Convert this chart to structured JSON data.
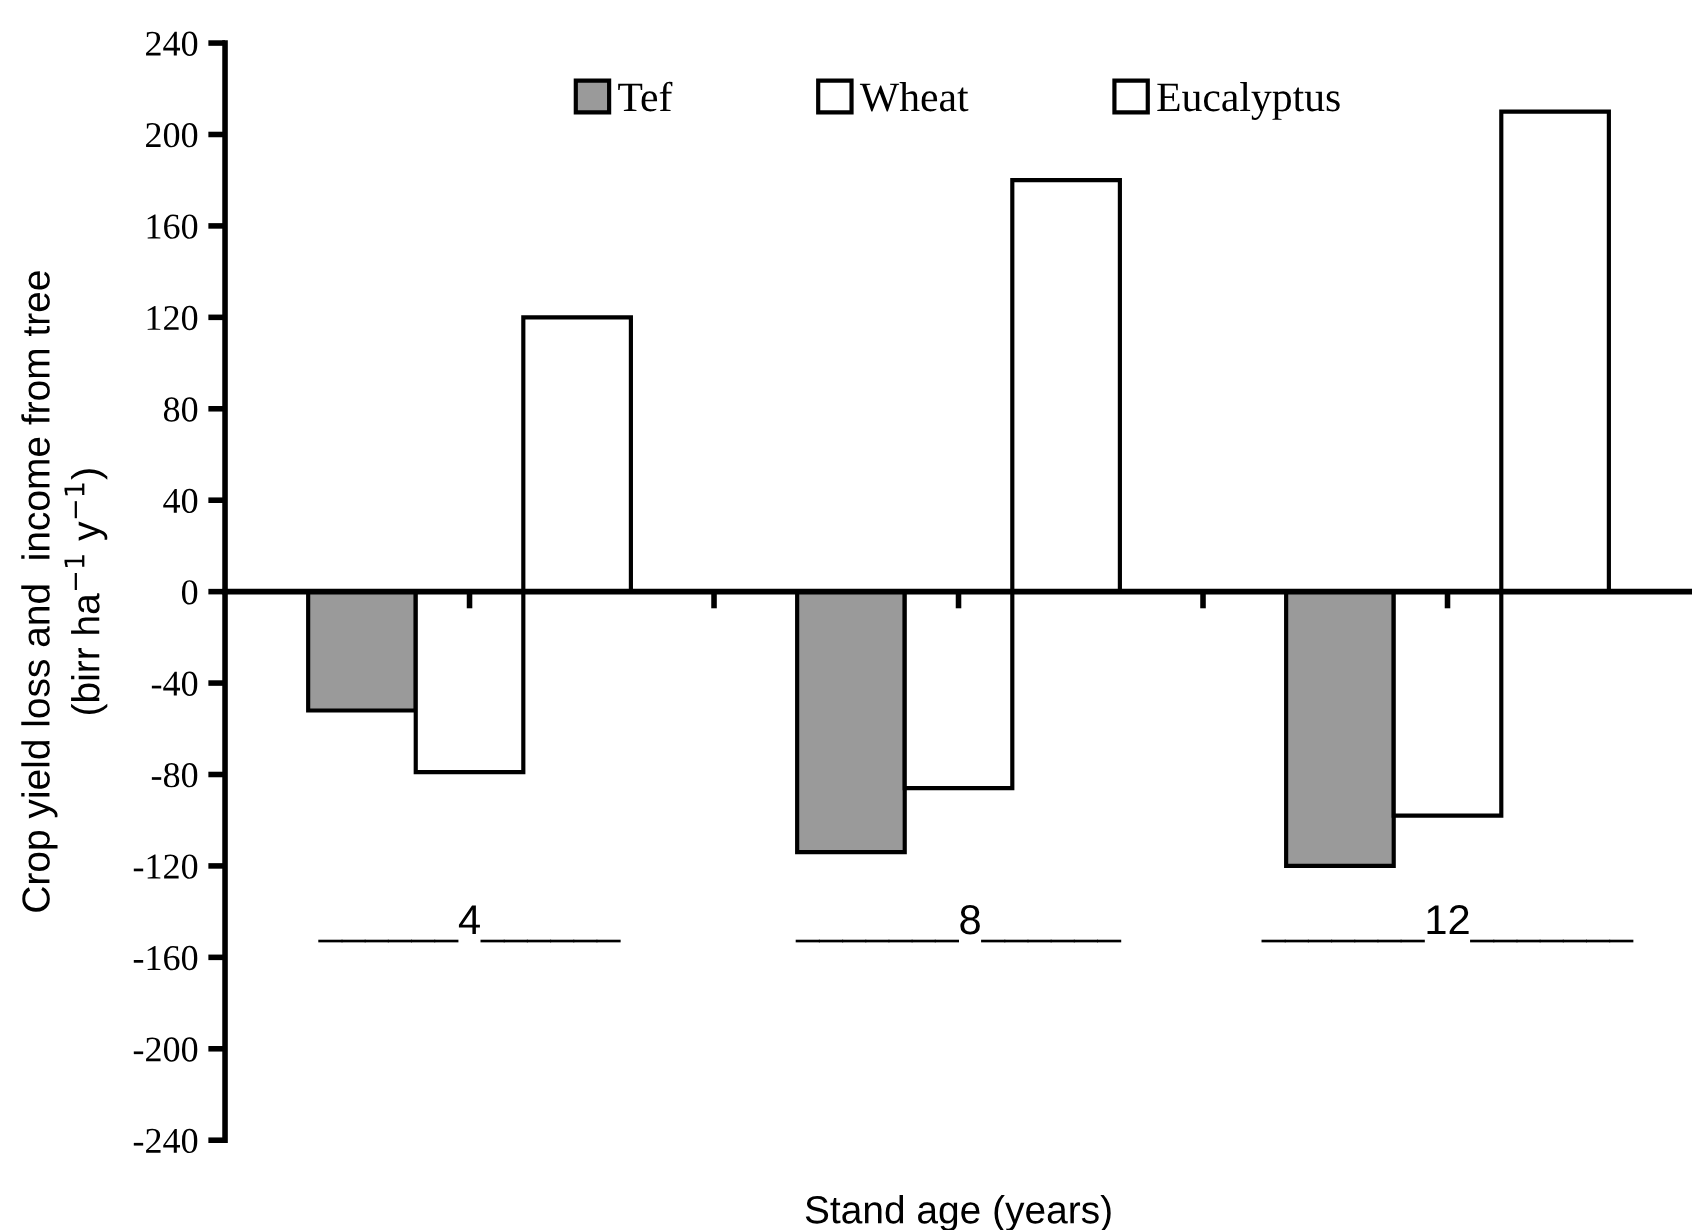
{
  "chart_data": {
    "type": "bar",
    "xlabel": "Stand age (years)",
    "ylabel": "Crop yield loss and  income from tree\n(birr ha$^{−1}$ y$^{−1}$)",
    "categories": [
      "______4______",
      "_______8______",
      "_______12_______"
    ],
    "series": [
      {
        "name": "Tef",
        "color": "#9a9a9a",
        "values": [
          -52,
          -114,
          -120
        ]
      },
      {
        "name": "Wheat",
        "color": "#ffffff",
        "values": [
          -79,
          -86,
          -98
        ]
      },
      {
        "name": "Eucalyptus",
        "color": "#ffffff",
        "values": [
          120,
          180,
          210
        ]
      }
    ],
    "ylim": [
      -240,
      240
    ],
    "yticks": [
      -240,
      -200,
      -160,
      -120,
      -80,
      -40,
      0,
      40,
      80,
      120,
      160,
      200,
      240
    ],
    "legend": "top"
  }
}
